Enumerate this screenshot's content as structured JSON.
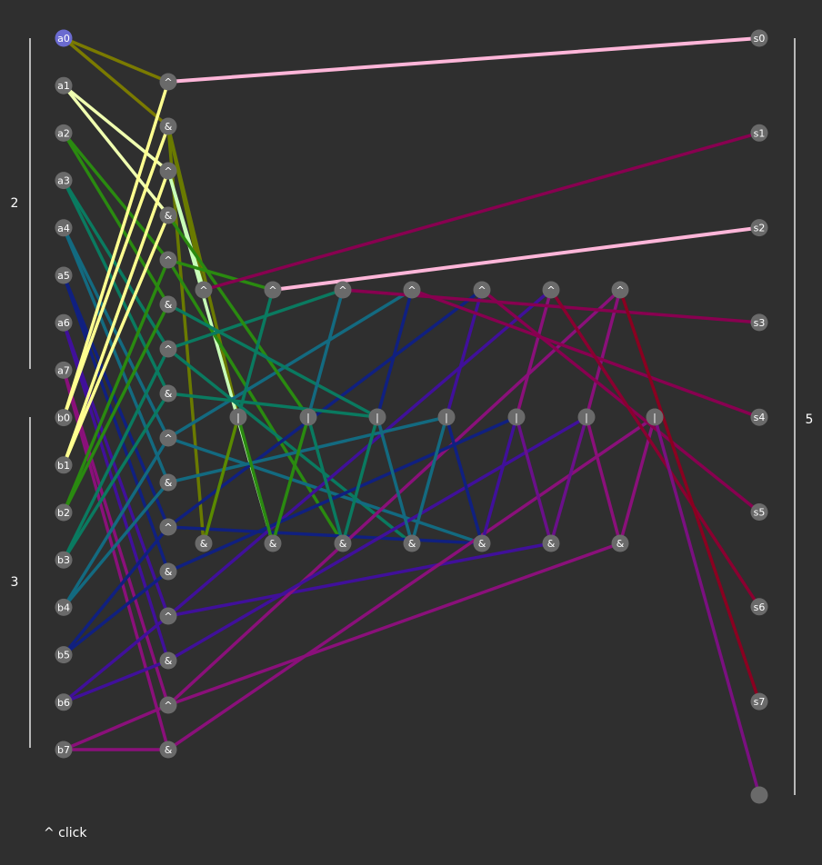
{
  "colors": {
    "background": "#2f2f2f",
    "node": "#6a6a6a",
    "active_node": "#6b6bd0",
    "text": "#ffffff",
    "bracket": "#e6e6e6"
  },
  "brackets": [
    {
      "id": "a-bits",
      "label": "2"
    },
    {
      "id": "b-bits",
      "label": "3"
    },
    {
      "id": "s-bits",
      "label": "5"
    }
  ],
  "nodes": [
    {
      "id": "a0",
      "label": "a0",
      "active": true
    },
    {
      "id": "a1",
      "label": "a1"
    },
    {
      "id": "a2",
      "label": "a2"
    },
    {
      "id": "a3",
      "label": "a3"
    },
    {
      "id": "a4",
      "label": "a4"
    },
    {
      "id": "a5",
      "label": "a5"
    },
    {
      "id": "a6",
      "label": "a6"
    },
    {
      "id": "a7",
      "label": "a7"
    },
    {
      "id": "b0",
      "label": "b0"
    },
    {
      "id": "b1",
      "label": "b1"
    },
    {
      "id": "b2",
      "label": "b2"
    },
    {
      "id": "b3",
      "label": "b3"
    },
    {
      "id": "b4",
      "label": "b4"
    },
    {
      "id": "b5",
      "label": "b5"
    },
    {
      "id": "b6",
      "label": "b6"
    },
    {
      "id": "b7",
      "label": "b7"
    },
    {
      "id": "x0",
      "label": "^"
    },
    {
      "id": "y0",
      "label": "&"
    },
    {
      "id": "x1",
      "label": "^"
    },
    {
      "id": "y1",
      "label": "&"
    },
    {
      "id": "x2",
      "label": "^"
    },
    {
      "id": "y2",
      "label": "&"
    },
    {
      "id": "x3",
      "label": "^"
    },
    {
      "id": "y3",
      "label": "&"
    },
    {
      "id": "x4",
      "label": "^"
    },
    {
      "id": "y4",
      "label": "&"
    },
    {
      "id": "x5",
      "label": "^"
    },
    {
      "id": "y5",
      "label": "&"
    },
    {
      "id": "x6",
      "label": "^"
    },
    {
      "id": "y6",
      "label": "&"
    },
    {
      "id": "x7",
      "label": "^"
    },
    {
      "id": "y7",
      "label": "&"
    },
    {
      "id": "t1",
      "label": "^"
    },
    {
      "id": "t2",
      "label": "^"
    },
    {
      "id": "t3",
      "label": "^"
    },
    {
      "id": "t4",
      "label": "^"
    },
    {
      "id": "t5",
      "label": "^"
    },
    {
      "id": "t6",
      "label": "^"
    },
    {
      "id": "t7",
      "label": "^"
    },
    {
      "id": "o1",
      "label": "|"
    },
    {
      "id": "o2",
      "label": "|"
    },
    {
      "id": "o3",
      "label": "|"
    },
    {
      "id": "o4",
      "label": "|"
    },
    {
      "id": "o5",
      "label": "|"
    },
    {
      "id": "o6",
      "label": "|"
    },
    {
      "id": "o7",
      "label": "|"
    },
    {
      "id": "m1",
      "label": "&"
    },
    {
      "id": "m2",
      "label": "&"
    },
    {
      "id": "m3",
      "label": "&"
    },
    {
      "id": "m4",
      "label": "&"
    },
    {
      "id": "m5",
      "label": "&"
    },
    {
      "id": "m6",
      "label": "&"
    },
    {
      "id": "m7",
      "label": "&"
    },
    {
      "id": "s0",
      "label": "s0"
    },
    {
      "id": "s1",
      "label": "s1"
    },
    {
      "id": "s2",
      "label": "s2"
    },
    {
      "id": "s3",
      "label": "s3"
    },
    {
      "id": "s4",
      "label": "s4"
    },
    {
      "id": "s5",
      "label": "s5"
    },
    {
      "id": "s6",
      "label": "s6"
    },
    {
      "id": "s7",
      "label": "s7"
    },
    {
      "id": "s8",
      "label": ""
    }
  ],
  "edges": [
    {
      "from": "a0",
      "to": "x0",
      "color": "#7a7a00"
    },
    {
      "from": "a0",
      "to": "y0",
      "color": "#7a7a00"
    },
    {
      "from": "x0",
      "to": "s0",
      "color": "#ffb6d9",
      "width": 4
    },
    {
      "from": "a1",
      "to": "x1",
      "color": "#f0ffb0"
    },
    {
      "from": "a1",
      "to": "y1",
      "color": "#f0ffb0"
    },
    {
      "from": "a2",
      "to": "x2",
      "color": "#2a8a10"
    },
    {
      "from": "a2",
      "to": "y2",
      "color": "#2a8a10"
    },
    {
      "from": "a3",
      "to": "x3",
      "color": "#0a7a60"
    },
    {
      "from": "a3",
      "to": "y3",
      "color": "#0a7a60"
    },
    {
      "from": "a4",
      "to": "x4",
      "color": "#136a80"
    },
    {
      "from": "a4",
      "to": "y4",
      "color": "#136a80"
    },
    {
      "from": "a5",
      "to": "x5",
      "color": "#102080"
    },
    {
      "from": "a5",
      "to": "y5",
      "color": "#102080"
    },
    {
      "from": "a6",
      "to": "x6",
      "color": "#40109a"
    },
    {
      "from": "a6",
      "to": "y6",
      "color": "#40109a"
    },
    {
      "from": "a7",
      "to": "x7",
      "color": "#8a107a"
    },
    {
      "from": "a7",
      "to": "y7",
      "color": "#8a107a"
    },
    {
      "from": "b0",
      "to": "x0",
      "color": "#ffff90"
    },
    {
      "from": "b0",
      "to": "y0",
      "color": "#ffff90"
    },
    {
      "from": "b1",
      "to": "x1",
      "color": "#ffff90"
    },
    {
      "from": "b1",
      "to": "y1",
      "color": "#ffff90"
    },
    {
      "from": "b2",
      "to": "x2",
      "color": "#2a8a10"
    },
    {
      "from": "b2",
      "to": "y2",
      "color": "#2a8a10"
    },
    {
      "from": "b3",
      "to": "x3",
      "color": "#0a7a60"
    },
    {
      "from": "b3",
      "to": "y3",
      "color": "#0a7a60"
    },
    {
      "from": "b4",
      "to": "x4",
      "color": "#136a80"
    },
    {
      "from": "b4",
      "to": "y4",
      "color": "#136a80"
    },
    {
      "from": "b5",
      "to": "x5",
      "color": "#102080"
    },
    {
      "from": "b5",
      "to": "y5",
      "color": "#102080"
    },
    {
      "from": "b6",
      "to": "x6",
      "color": "#40109a"
    },
    {
      "from": "b6",
      "to": "y6",
      "color": "#40109a"
    },
    {
      "from": "b7",
      "to": "x7",
      "color": "#8a107a"
    },
    {
      "from": "b7",
      "to": "y7",
      "color": "#8a107a"
    },
    {
      "from": "y0",
      "to": "m1",
      "color": "#6a7a00"
    },
    {
      "from": "y0",
      "to": "o1",
      "color": "#6a7a00"
    },
    {
      "from": "y0",
      "to": "t1",
      "color": "#6a7a00"
    },
    {
      "from": "x1",
      "to": "t1",
      "color": "#c8ffb8"
    },
    {
      "from": "x1",
      "to": "m2",
      "color": "#c8ffb8"
    },
    {
      "from": "x2",
      "to": "t2",
      "color": "#2a8a10"
    },
    {
      "from": "x2",
      "to": "m3",
      "color": "#2a8a10"
    },
    {
      "from": "x3",
      "to": "t3",
      "color": "#0a7a60"
    },
    {
      "from": "x3",
      "to": "m4",
      "color": "#0a7a60"
    },
    {
      "from": "x4",
      "to": "t4",
      "color": "#136a80"
    },
    {
      "from": "x4",
      "to": "m5",
      "color": "#136a80"
    },
    {
      "from": "x5",
      "to": "t5",
      "color": "#102080"
    },
    {
      "from": "x5",
      "to": "m5",
      "color": "#102080"
    },
    {
      "from": "x6",
      "to": "t6",
      "color": "#40109a"
    },
    {
      "from": "x6",
      "to": "m6",
      "color": "#40109a"
    },
    {
      "from": "x7",
      "to": "t7",
      "color": "#8a107a"
    },
    {
      "from": "x7",
      "to": "m7",
      "color": "#8a107a"
    },
    {
      "from": "y1",
      "to": "o2",
      "color": "#2a8a10"
    },
    {
      "from": "y2",
      "to": "o3",
      "color": "#0a7a60"
    },
    {
      "from": "y3",
      "to": "o3",
      "color": "#0a7a60"
    },
    {
      "from": "y4",
      "to": "o4",
      "color": "#136a80"
    },
    {
      "from": "y5",
      "to": "o5",
      "color": "#102080"
    },
    {
      "from": "y6",
      "to": "o6",
      "color": "#40109a"
    },
    {
      "from": "y7",
      "to": "o7",
      "color": "#8a107a"
    },
    {
      "from": "m1",
      "to": "o1",
      "color": "#5a8a00"
    },
    {
      "from": "m2",
      "to": "o1",
      "color": "#2a8a10"
    },
    {
      "from": "m2",
      "to": "o2",
      "color": "#2a8a10"
    },
    {
      "from": "m3",
      "to": "o2",
      "color": "#0a7a60"
    },
    {
      "from": "m3",
      "to": "o3",
      "color": "#0a7a60"
    },
    {
      "from": "m4",
      "to": "o3",
      "color": "#136a80"
    },
    {
      "from": "m4",
      "to": "o4",
      "color": "#136a80"
    },
    {
      "from": "m5",
      "to": "o4",
      "color": "#102080"
    },
    {
      "from": "m5",
      "to": "o5",
      "color": "#40109a"
    },
    {
      "from": "m6",
      "to": "o5",
      "color": "#6a108a"
    },
    {
      "from": "m6",
      "to": "o6",
      "color": "#6a108a"
    },
    {
      "from": "m7",
      "to": "o6",
      "color": "#8a107a"
    },
    {
      "from": "m7",
      "to": "o7",
      "color": "#8a107a"
    },
    {
      "from": "o1",
      "to": "t2",
      "color": "#0a7a60"
    },
    {
      "from": "o2",
      "to": "t3",
      "color": "#136a80"
    },
    {
      "from": "o3",
      "to": "t4",
      "color": "#102080"
    },
    {
      "from": "o4",
      "to": "t5",
      "color": "#40109a"
    },
    {
      "from": "o5",
      "to": "t6",
      "color": "#8a107a"
    },
    {
      "from": "o6",
      "to": "t7",
      "color": "#8a107a"
    },
    {
      "from": "t1",
      "to": "s1",
      "color": "#880050"
    },
    {
      "from": "t2",
      "to": "s2",
      "color": "#ffb6d9",
      "width": 4
    },
    {
      "from": "t3",
      "to": "s3",
      "color": "#880050"
    },
    {
      "from": "t4",
      "to": "s4",
      "color": "#880050"
    },
    {
      "from": "t5",
      "to": "s5",
      "color": "#880050"
    },
    {
      "from": "t6",
      "to": "s6",
      "color": "#8a0030"
    },
    {
      "from": "t7",
      "to": "s7",
      "color": "#8a0020"
    },
    {
      "from": "o7",
      "to": "s8",
      "color": "#7a1080"
    }
  ],
  "footer": {
    "label": "^ click"
  }
}
